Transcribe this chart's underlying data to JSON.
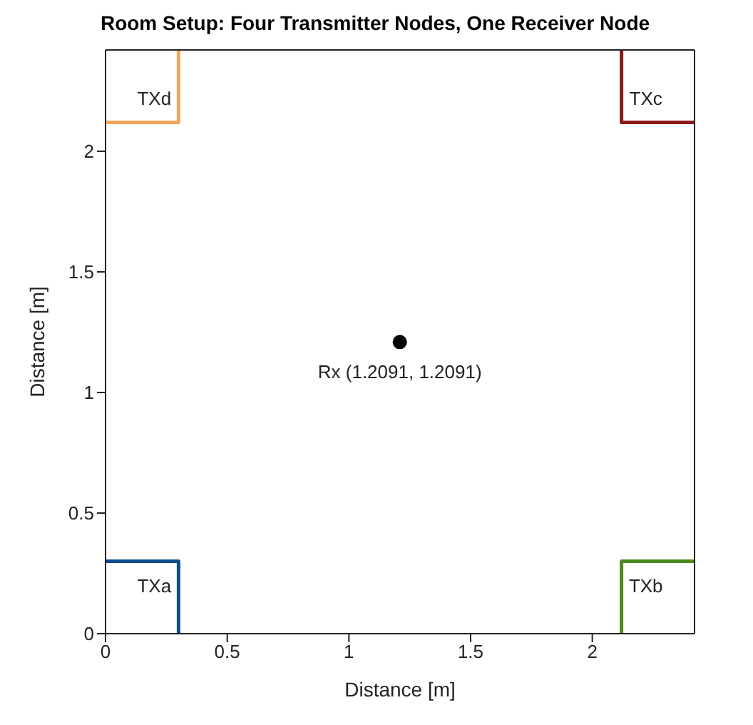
{
  "chart_data": {
    "type": "line",
    "title": "Room Setup: Four Transmitter Nodes, One Receiver Node",
    "xlabel": "Distance [m]",
    "ylabel": "Distance [m]",
    "xlim": [
      0,
      2.42
    ],
    "ylim": [
      0,
      2.42
    ],
    "xticks": [
      0,
      0.5,
      1,
      1.5,
      2
    ],
    "yticks": [
      0,
      0.5,
      1,
      1.5,
      2
    ],
    "grid": false,
    "legend": false,
    "series": [
      {
        "name": "TXa",
        "color": "#0b4c8c",
        "x": [
          0,
          0.3,
          0.3
        ],
        "values": [
          0.3,
          0.3,
          0
        ]
      },
      {
        "name": "TXb",
        "color": "#4d8a1e",
        "x": [
          2.12,
          2.12,
          2.42
        ],
        "values": [
          0,
          0.3,
          0.3
        ]
      },
      {
        "name": "TXc",
        "color": "#8b1a1a",
        "x": [
          2.42,
          2.12,
          2.12
        ],
        "values": [
          2.12,
          2.12,
          2.42
        ]
      },
      {
        "name": "TXd",
        "color": "#f5a55a",
        "x": [
          0,
          0.3,
          0.3
        ],
        "values": [
          2.12,
          2.12,
          2.42
        ]
      },
      {
        "type": "scatter",
        "color": "#000000",
        "marker": "circle",
        "x": [
          1.2091
        ],
        "values": [
          1.2091
        ]
      }
    ],
    "annotations": [
      {
        "text": "Rx (1.2091, 1.2091)",
        "x": 1.2091,
        "y": 1.2091
      }
    ]
  }
}
